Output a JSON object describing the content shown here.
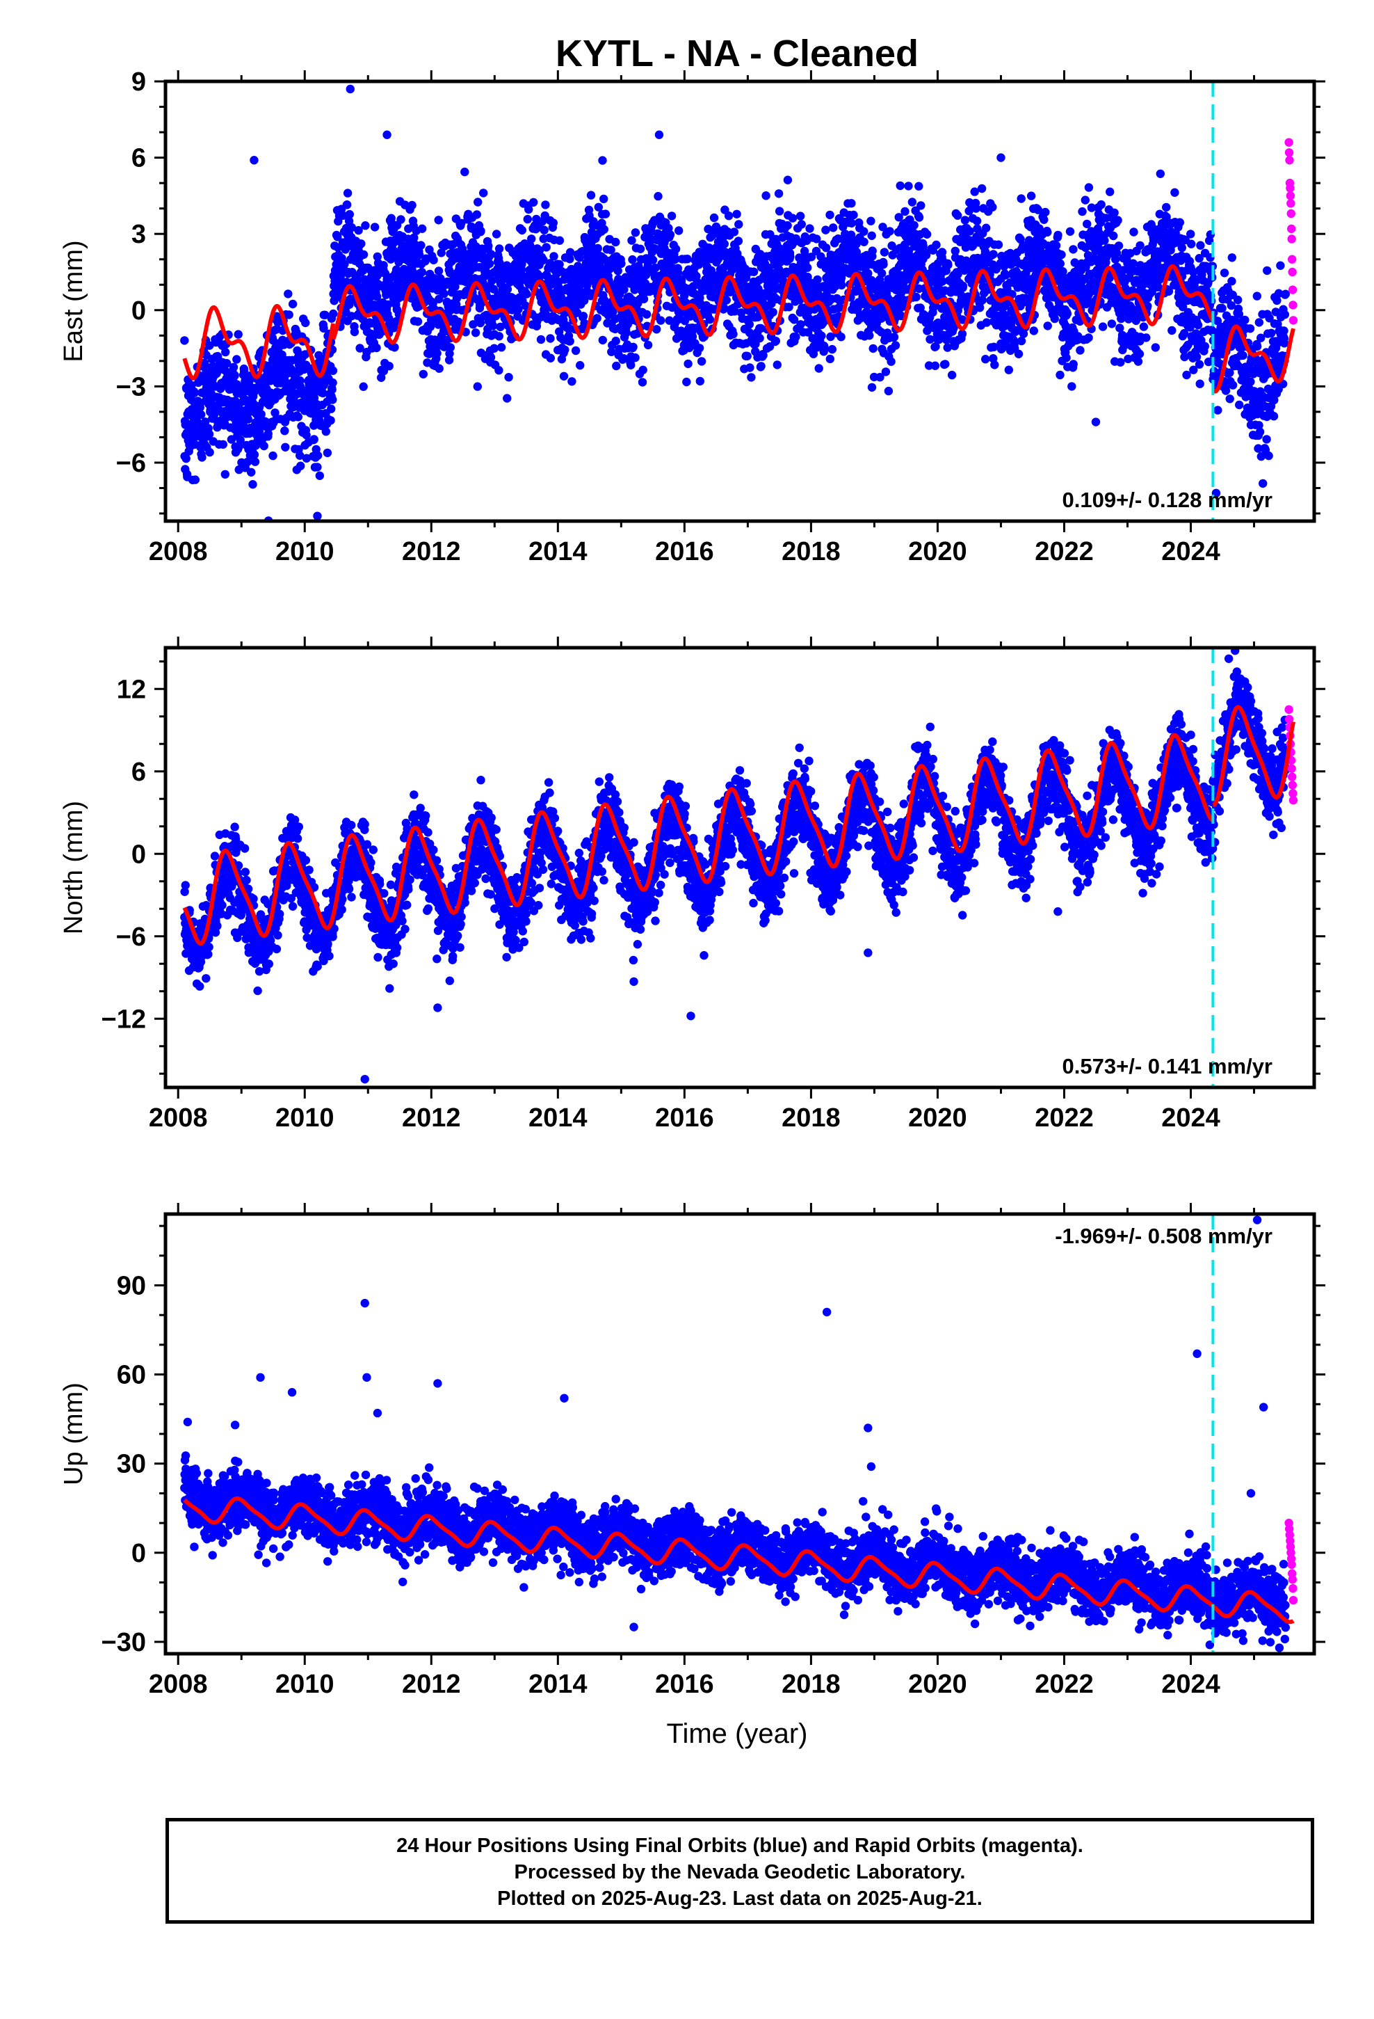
{
  "title": "KYTL  - NA - Cleaned",
  "xlabel": "Time (year)",
  "footer": {
    "line1": "24 Hour Positions Using Final Orbits (blue) and Rapid Orbits (magenta).",
    "line2": "Processed by the Nevada Geodetic Laboratory.",
    "line3": "Plotted on 2025-Aug-23. Last data on 2025-Aug-21."
  },
  "colors": {
    "final_orbits": "#0000ff",
    "rapid_orbits": "#ff00ff",
    "model_fit": "#ff0000",
    "equipment_change": "#00e5ee"
  },
  "chart_data": [
    {
      "type": "scatter",
      "panel": "east",
      "ylabel": "East (mm)",
      "xlim": [
        2007.8,
        2025.95
      ],
      "ylim": [
        -8.3,
        9.0
      ],
      "yticks": [
        -6,
        -3,
        0,
        3,
        6,
        9
      ],
      "xticks": [
        2008,
        2010,
        2012,
        2014,
        2016,
        2018,
        2020,
        2022,
        2024
      ],
      "x_minor_step": 1,
      "y_minor_step": 1,
      "rate_label": "0.109+/- 0.128 mm/yr",
      "rate_position": "bottom-right",
      "equipment_change_year": 2024.35,
      "series": [
        {
          "name": "Final Orbits",
          "color": "#0000ff",
          "x_range": [
            2008.1,
            2025.5
          ],
          "segments": [
            {
              "from": 2008.1,
              "to": 2010.45,
              "base": -4.0,
              "trend_per_year": 0.6,
              "annual_amp": 0.8,
              "annual_phase": 0.35,
              "noise": 1.3
            },
            {
              "from": 2010.45,
              "to": 2024.35,
              "base": 0.9,
              "trend_per_year": 0.02,
              "annual_amp": 1.0,
              "annual_phase": 0.35,
              "noise": 1.2
            },
            {
              "from": 2024.35,
              "to": 2025.5,
              "base": -2.0,
              "trend_per_year": 0.0,
              "annual_amp": 1.0,
              "annual_phase": 0.35,
              "noise": 1.2
            }
          ],
          "outliers": [
            [
              2010.72,
              8.7
            ],
            [
              2011.3,
              6.9
            ],
            [
              2009.2,
              5.9
            ],
            [
              2015.6,
              6.9
            ],
            [
              2021.0,
              6.0
            ],
            [
              2010.2,
              -8.1
            ],
            [
              2024.4,
              -7.2
            ],
            [
              2022.5,
              -4.4
            ]
          ]
        },
        {
          "name": "Rapid Orbits",
          "color": "#ff00ff",
          "x_range": [
            2025.55,
            2025.62
          ],
          "values": [
            6.6,
            6.2,
            5.9,
            5.0,
            4.8,
            4.5,
            4.2,
            3.8,
            3.2,
            2.8,
            2.0,
            1.5,
            0.8,
            0.2,
            -0.4
          ]
        }
      ],
      "model": {
        "name": "Model fit",
        "color": "#ff0000",
        "segments": [
          {
            "from": 2008.1,
            "to": 2010.45,
            "base": -1.3,
            "trend_per_year": 0.05,
            "annual_amp": 1.0,
            "semiannual_amp": 0.6,
            "phase": 0.4
          },
          {
            "from": 2010.45,
            "to": 2024.35,
            "base": -0.2,
            "trend_per_year": 0.06,
            "annual_amp": 0.8,
            "semiannual_amp": 0.5,
            "phase": 0.55
          },
          {
            "from": 2024.35,
            "to": 2025.62,
            "base": -2.0,
            "trend_per_year": 0.4,
            "annual_amp": 0.9,
            "semiannual_amp": 0.5,
            "phase": 0.55
          }
        ]
      }
    },
    {
      "type": "scatter",
      "panel": "north",
      "ylabel": "North (mm)",
      "xlim": [
        2007.8,
        2025.95
      ],
      "ylim": [
        -17,
        15
      ],
      "yticks": [
        -12,
        -6,
        0,
        6,
        12
      ],
      "xticks": [
        2008,
        2010,
        2012,
        2014,
        2016,
        2018,
        2020,
        2022,
        2024
      ],
      "x_minor_step": 1,
      "y_minor_step": 2,
      "rate_label": "0.573+/- 0.141 mm/yr",
      "rate_position": "bottom-right",
      "equipment_change_year": 2024.35,
      "series": [
        {
          "name": "Final Orbits",
          "color": "#0000ff",
          "x_range": [
            2008.1,
            2025.5
          ],
          "segments": [
            {
              "from": 2008.1,
              "to": 2024.35,
              "base": -4.3,
              "trend_per_year": 0.54,
              "annual_amp": 3.0,
              "annual_phase": 0.55,
              "noise": 1.4
            },
            {
              "from": 2024.35,
              "to": 2025.5,
              "base": 7.4,
              "trend_per_year": 0.54,
              "annual_amp": 3.2,
              "annual_phase": 0.55,
              "noise": 1.4
            }
          ],
          "outliers": [
            [
              2010.95,
              -16.4
            ],
            [
              2016.1,
              -11.8
            ],
            [
              2012.1,
              -11.2
            ],
            [
              2015.2,
              -9.3
            ],
            [
              2018.9,
              -7.2
            ],
            [
              2021.9,
              -4.2
            ],
            [
              2024.6,
              14.2
            ]
          ]
        },
        {
          "name": "Rapid Orbits",
          "color": "#ff00ff",
          "x_range": [
            2025.55,
            2025.62
          ],
          "values": [
            10.5,
            9.8,
            9.2,
            8.6,
            8.0,
            7.4,
            6.8,
            6.2,
            5.6,
            5.0,
            4.4,
            3.9
          ]
        }
      ],
      "model": {
        "name": "Model fit",
        "color": "#ff0000",
        "segments": [
          {
            "from": 2008.1,
            "to": 2024.35,
            "base": -3.4,
            "trend_per_year": 0.56,
            "annual_amp": 3.0,
            "semiannual_amp": 0.7,
            "phase": 0.55
          },
          {
            "from": 2024.35,
            "to": 2025.62,
            "base": 7.0,
            "trend_per_year": 0.56,
            "annual_amp": 3.2,
            "semiannual_amp": 0.7,
            "phase": 0.55
          }
        ]
      }
    },
    {
      "type": "scatter",
      "panel": "up",
      "ylabel": "Up (mm)",
      "xlim": [
        2007.8,
        2025.95
      ],
      "ylim": [
        -34,
        114
      ],
      "yticks": [
        -30,
        0,
        30,
        60,
        90
      ],
      "xticks": [
        2008,
        2010,
        2012,
        2014,
        2016,
        2018,
        2020,
        2022,
        2024
      ],
      "x_minor_step": 1,
      "y_minor_step": 10,
      "rate_label": "-1.969+/- 0.508 mm/yr",
      "rate_position": "top-right",
      "equipment_change_year": 2024.35,
      "series": [
        {
          "name": "Final Orbits",
          "color": "#0000ff",
          "x_range": [
            2008.1,
            2025.5
          ],
          "segments": [
            {
              "from": 2008.1,
              "to": 2025.5,
              "base": 18.0,
              "trend_per_year": -1.97,
              "annual_amp": 3.5,
              "annual_phase": 0.75,
              "noise": 5.0
            }
          ],
          "outliers": [
            [
              2008.15,
              44
            ],
            [
              2008.9,
              43
            ],
            [
              2009.3,
              59
            ],
            [
              2009.8,
              54
            ],
            [
              2010.95,
              84
            ],
            [
              2010.98,
              59
            ],
            [
              2011.15,
              47
            ],
            [
              2012.1,
              57
            ],
            [
              2014.1,
              52
            ],
            [
              2015.2,
              -25
            ],
            [
              2018.25,
              81
            ],
            [
              2018.9,
              42
            ],
            [
              2018.95,
              29
            ],
            [
              2024.1,
              67
            ],
            [
              2025.05,
              112
            ],
            [
              2025.15,
              49
            ],
            [
              2024.95,
              20
            ],
            [
              2024.3,
              -31
            ],
            [
              2025.4,
              -32
            ]
          ]
        },
        {
          "name": "Rapid Orbits",
          "color": "#ff00ff",
          "x_range": [
            2025.55,
            2025.62
          ],
          "values": [
            10,
            8,
            6,
            4,
            2,
            0,
            -2,
            -4,
            -7,
            -9,
            -12,
            -16
          ]
        }
      ],
      "model": {
        "name": "Model fit",
        "color": "#ff0000",
        "segments": [
          {
            "from": 2008.1,
            "to": 2025.62,
            "base": 15.5,
            "trend_per_year": -1.97,
            "annual_amp": 4.0,
            "semiannual_amp": 1.0,
            "phase": 0.75
          }
        ]
      }
    }
  ]
}
